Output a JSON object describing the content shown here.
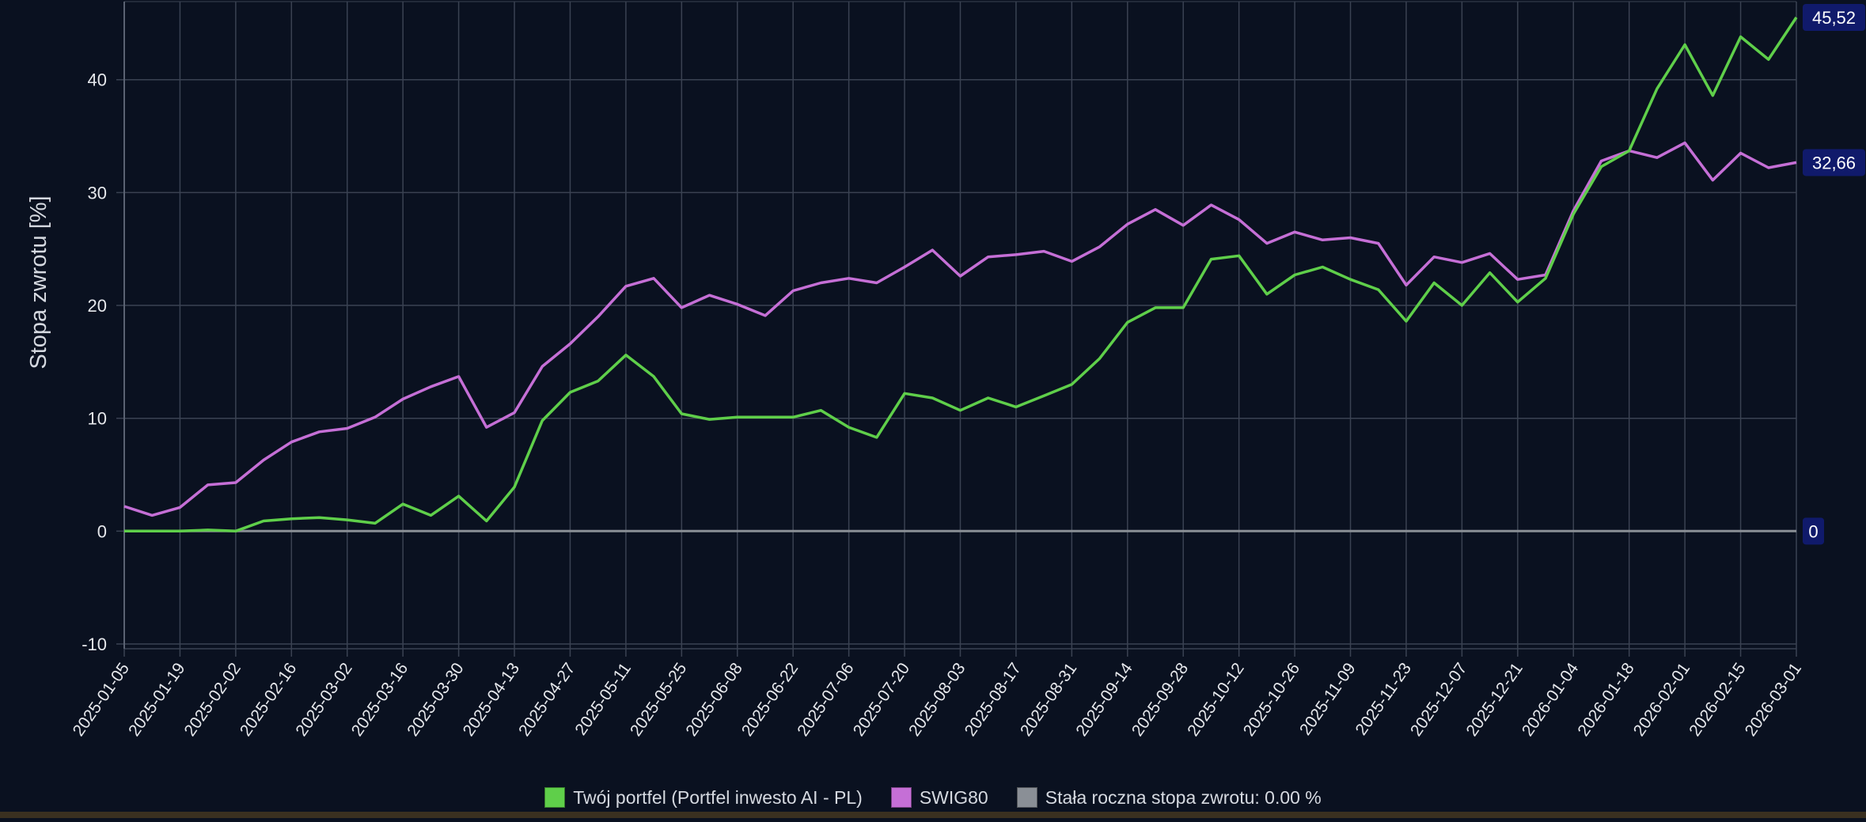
{
  "colors": {
    "background": "#0a1120",
    "grid": "#3a4252",
    "axis_text": "#e6e8ec",
    "portfolio": "#5fcf4a",
    "benchmark": "#c56fd6",
    "constant": "#8a8f96",
    "label_box": "#101a6b"
  },
  "chart_data": {
    "type": "line",
    "ylabel": "Stopa zwrotu [%]",
    "ylim": [
      -10,
      45.52
    ],
    "yticks": [
      -10,
      0,
      10,
      20,
      30,
      40
    ],
    "x_tick_labels": [
      "2025-01-05",
      "2025-01-19",
      "2025-02-02",
      "2025-02-16",
      "2025-03-02",
      "2025-03-16",
      "2025-03-30",
      "2025-04-13",
      "2025-04-27",
      "2025-05-11",
      "2025-05-25",
      "2025-06-08",
      "2025-06-22",
      "2025-07-06",
      "2025-07-20",
      "2025-08-03",
      "2025-08-17",
      "2025-08-31",
      "2025-09-14",
      "2025-09-28",
      "2025-10-12",
      "2025-10-26",
      "2025-11-09",
      "2025-11-23",
      "2025-12-07",
      "2025-12-21",
      "2026-01-04",
      "2026-01-18",
      "2026-02-01",
      "2026-02-15",
      "2026-03-01"
    ],
    "x": [
      "2025-01-05",
      "2025-01-12",
      "2025-01-19",
      "2025-01-26",
      "2025-02-02",
      "2025-02-09",
      "2025-02-16",
      "2025-02-23",
      "2025-03-02",
      "2025-03-09",
      "2025-03-16",
      "2025-03-23",
      "2025-03-30",
      "2025-04-06",
      "2025-04-13",
      "2025-04-20",
      "2025-04-27",
      "2025-05-04",
      "2025-05-11",
      "2025-05-18",
      "2025-05-25",
      "2025-06-01",
      "2025-06-08",
      "2025-06-15",
      "2025-06-22",
      "2025-06-29",
      "2025-07-06",
      "2025-07-13",
      "2025-07-20",
      "2025-07-27",
      "2025-08-03",
      "2025-08-10",
      "2025-08-17",
      "2025-08-24",
      "2025-08-31",
      "2025-09-07",
      "2025-09-14",
      "2025-09-21",
      "2025-09-28",
      "2025-10-05",
      "2025-10-12",
      "2025-10-19",
      "2025-10-26",
      "2025-11-02",
      "2025-11-09",
      "2025-11-16",
      "2025-11-23",
      "2025-11-30",
      "2025-12-07",
      "2025-12-14",
      "2025-12-21",
      "2025-12-28",
      "2026-01-04",
      "2026-01-11",
      "2026-01-18",
      "2026-01-25",
      "2026-02-01",
      "2026-02-08",
      "2026-02-15",
      "2026-02-22",
      "2026-03-01"
    ],
    "series": [
      {
        "name": "Twój portfel (Portfel inwesto AI - PL)",
        "color": "#5fcf4a",
        "end_label": "45,52",
        "values": [
          0.0,
          0.0,
          0.0,
          0.1,
          0.0,
          0.9,
          1.1,
          1.2,
          1.0,
          0.7,
          2.4,
          1.4,
          3.1,
          0.9,
          3.9,
          9.8,
          12.3,
          13.3,
          15.6,
          13.7,
          10.4,
          9.9,
          10.1,
          10.1,
          10.1,
          10.7,
          9.2,
          8.3,
          12.2,
          11.8,
          10.7,
          11.8,
          11.0,
          12.0,
          13.0,
          15.3,
          18.5,
          19.8,
          19.8,
          24.1,
          24.4,
          21.0,
          22.7,
          23.4,
          22.3,
          21.4,
          18.6,
          22.0,
          20.0,
          22.9,
          20.3,
          22.4,
          28.1,
          32.3,
          33.7,
          39.2,
          43.1,
          38.6,
          43.8,
          41.8,
          45.52
        ]
      },
      {
        "name": "SWIG80",
        "color": "#c56fd6",
        "end_label": "32,66",
        "values": [
          2.2,
          1.4,
          2.1,
          4.1,
          4.3,
          6.3,
          7.9,
          8.8,
          9.1,
          10.1,
          11.7,
          12.8,
          13.7,
          9.2,
          10.5,
          14.6,
          16.6,
          19.0,
          21.7,
          22.4,
          19.8,
          20.9,
          20.1,
          19.1,
          21.3,
          22.0,
          22.4,
          22.0,
          23.4,
          24.9,
          22.6,
          24.3,
          24.5,
          24.8,
          23.9,
          25.2,
          27.2,
          28.5,
          27.1,
          28.9,
          27.6,
          25.5,
          26.5,
          25.8,
          26.0,
          25.5,
          21.8,
          24.3,
          23.8,
          24.6,
          22.3,
          22.7,
          28.4,
          32.8,
          33.7,
          33.1,
          34.4,
          31.1,
          33.5,
          32.2,
          32.66
        ]
      },
      {
        "name": "Stała roczna stopa zwrotu: 0.00 %",
        "color": "#8a8f96",
        "end_label": "0",
        "values": [
          0,
          0,
          0,
          0,
          0,
          0,
          0,
          0,
          0,
          0,
          0,
          0,
          0,
          0,
          0,
          0,
          0,
          0,
          0,
          0,
          0,
          0,
          0,
          0,
          0,
          0,
          0,
          0,
          0,
          0,
          0,
          0,
          0,
          0,
          0,
          0,
          0,
          0,
          0,
          0,
          0,
          0,
          0,
          0,
          0,
          0,
          0,
          0,
          0,
          0,
          0,
          0,
          0,
          0,
          0,
          0,
          0,
          0,
          0,
          0,
          0
        ]
      }
    ],
    "grid": true,
    "legend_position": "bottom-center"
  },
  "legend": {
    "items": [
      {
        "label": "Twój portfel (Portfel inwesto AI - PL)",
        "color": "#5fcf4a"
      },
      {
        "label": "SWIG80",
        "color": "#c56fd6"
      },
      {
        "label": "Stała roczna stopa zwrotu: 0.00 %",
        "color": "#8a8f96"
      }
    ]
  }
}
